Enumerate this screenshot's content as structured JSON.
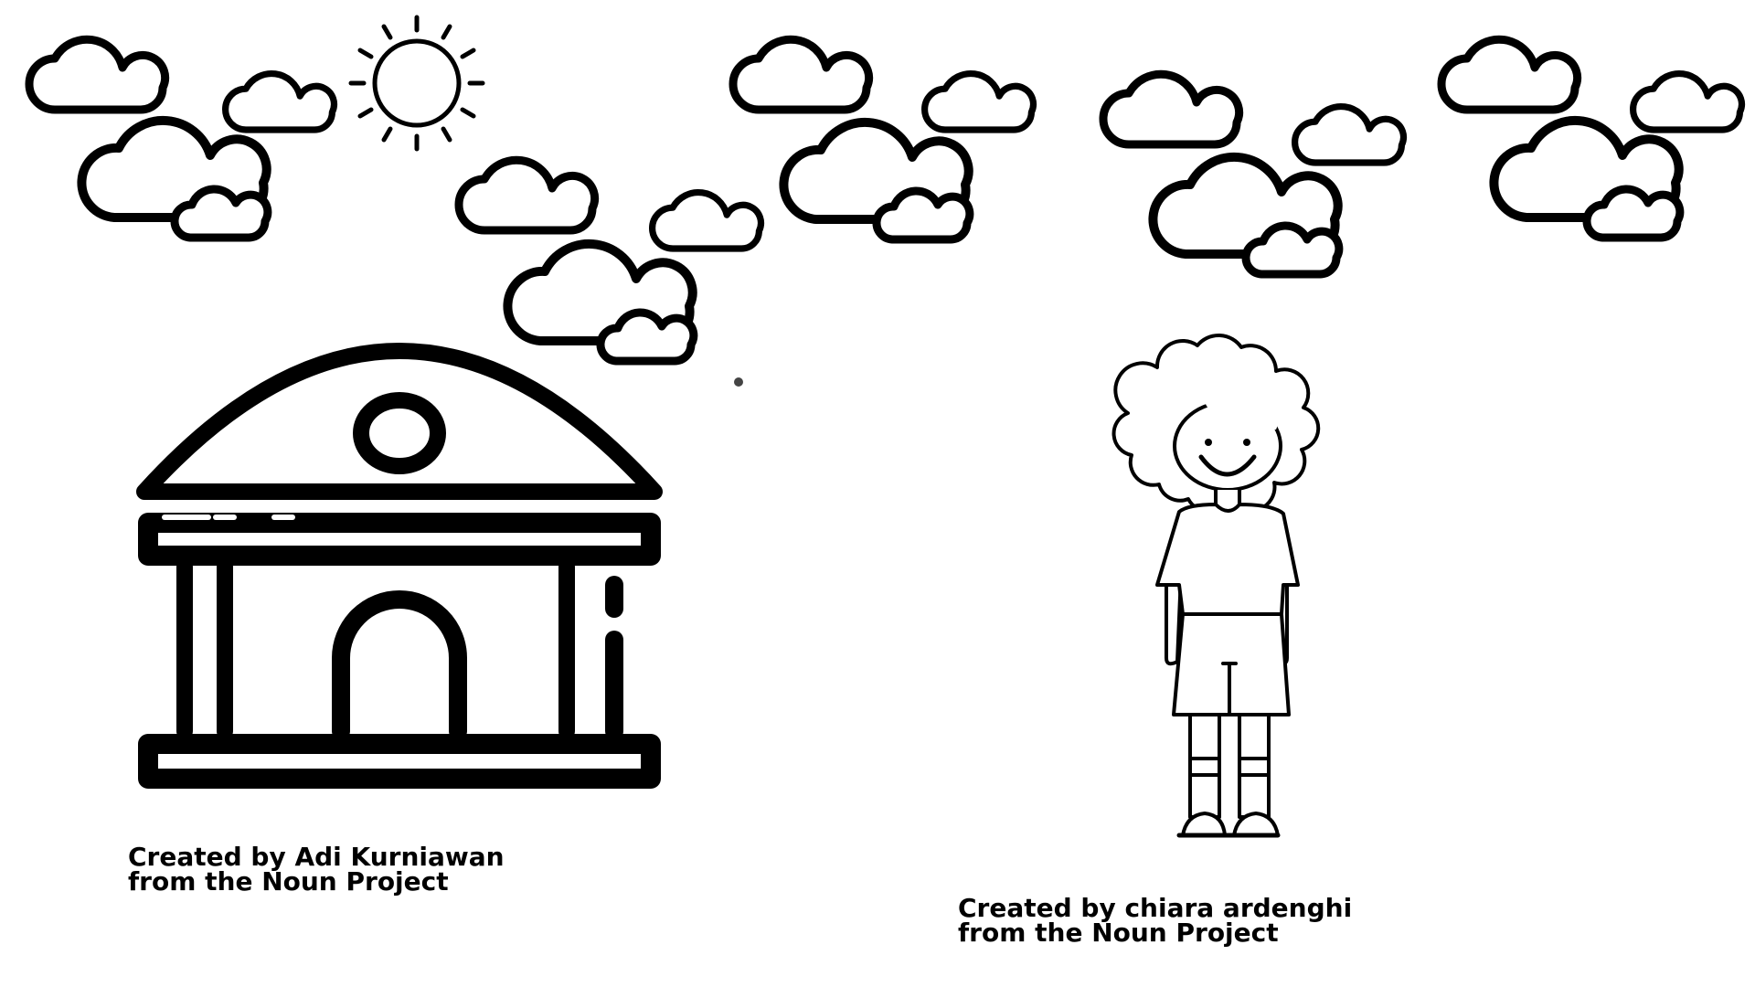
{
  "credits": {
    "building": {
      "line1": "Created by Adi Kurniawan",
      "line2": "from the Noun Project"
    },
    "child": {
      "line1": "Created by chiara ardenghi",
      "line2": "from the Noun Project"
    }
  },
  "icons": [
    "sun-icon",
    "cloud-icon",
    "building-icon",
    "child-icon"
  ],
  "colors": {
    "stroke": "#000000",
    "background": "#ffffff"
  }
}
